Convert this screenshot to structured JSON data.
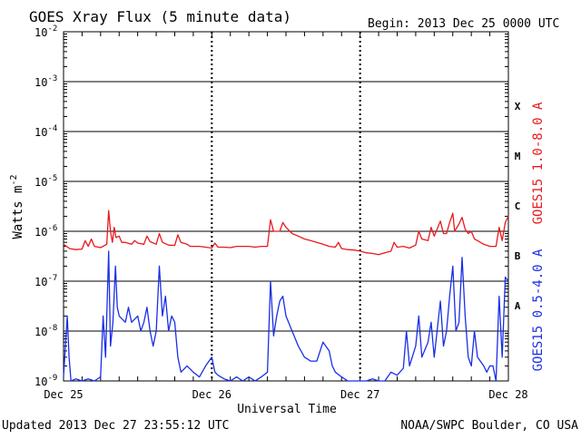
{
  "chart_data": {
    "type": "line",
    "title": "GOES Xray Flux (5 minute data)",
    "begin_label": "Begin:  2013 Dec 25 0000 UTC",
    "xlabel": "Universal Time",
    "ylabel": "Watts m",
    "ylabel_superscript": "-2",
    "y_scale": "log",
    "ylim": [
      1e-09,
      0.01
    ],
    "y_ticks": [
      {
        "value": 0.01,
        "label": "10",
        "exp": "-2"
      },
      {
        "value": 0.001,
        "label": "10",
        "exp": "-3"
      },
      {
        "value": 0.0001,
        "label": "10",
        "exp": "-4"
      },
      {
        "value": 1e-05,
        "label": "10",
        "exp": "-5"
      },
      {
        "value": 1e-06,
        "label": "10",
        "exp": "-6"
      },
      {
        "value": 1e-07,
        "label": "10",
        "exp": "-7"
      },
      {
        "value": 1e-08,
        "label": "10",
        "exp": "-8"
      },
      {
        "value": 1e-09,
        "label": "10",
        "exp": "-9"
      }
    ],
    "x_unit": "hours since 2013 Dec 25 0000 UTC",
    "xlim": [
      0,
      72
    ],
    "x_ticks": [
      {
        "value": 0,
        "label": "Dec 25"
      },
      {
        "value": 24,
        "label": "Dec 26"
      },
      {
        "value": 48,
        "label": "Dec 27"
      },
      {
        "value": 72,
        "label": "Dec 28"
      }
    ],
    "flare_classes": [
      {
        "label": "X",
        "value": 0.00032
      },
      {
        "label": "M",
        "value": 3.2e-05
      },
      {
        "label": "C",
        "value": 3.2e-06
      },
      {
        "label": "B",
        "value": 3.2e-07
      },
      {
        "label": "A",
        "value": 3.2e-08
      }
    ],
    "series": [
      {
        "name": "GOES15 1.0-8.0 A",
        "color": "#e8191e",
        "points": [
          [
            0,
            5.5e-07
          ],
          [
            1,
            4.5e-07
          ],
          [
            2,
            4.3e-07
          ],
          [
            3,
            4.4e-07
          ],
          [
            3.5,
            6.5e-07
          ],
          [
            4,
            5e-07
          ],
          [
            4.5,
            7e-07
          ],
          [
            5,
            5e-07
          ],
          [
            6,
            4.7e-07
          ],
          [
            7.0,
            5.5e-07
          ],
          [
            7.3,
            2.6e-06
          ],
          [
            7.6,
            1e-06
          ],
          [
            7.9,
            6e-07
          ],
          [
            8.2,
            1.2e-06
          ],
          [
            8.5,
            7.5e-07
          ],
          [
            9,
            8e-07
          ],
          [
            9.4,
            6e-07
          ],
          [
            10,
            6e-07
          ],
          [
            11,
            5.5e-07
          ],
          [
            11.5,
            6.5e-07
          ],
          [
            12,
            5.8e-07
          ],
          [
            13,
            5.5e-07
          ],
          [
            13.5,
            8e-07
          ],
          [
            14,
            6.2e-07
          ],
          [
            15,
            5.5e-07
          ],
          [
            15.5,
            9e-07
          ],
          [
            16,
            6e-07
          ],
          [
            17,
            5.3e-07
          ],
          [
            18,
            5.2e-07
          ],
          [
            18.5,
            8.5e-07
          ],
          [
            19,
            6e-07
          ],
          [
            20,
            5.5e-07
          ],
          [
            20.5,
            5e-07
          ],
          [
            22,
            5e-07
          ],
          [
            23,
            4.8e-07
          ],
          [
            24,
            4.6e-07
          ],
          [
            24.5,
            5.8e-07
          ],
          [
            25,
            4.8e-07
          ],
          [
            26,
            4.8e-07
          ],
          [
            27,
            4.7e-07
          ],
          [
            28,
            5e-07
          ],
          [
            29,
            5e-07
          ],
          [
            30,
            5e-07
          ],
          [
            31,
            4.8e-07
          ],
          [
            32,
            5e-07
          ],
          [
            33,
            5e-07
          ],
          [
            33.5,
            1.7e-06
          ],
          [
            34,
            1e-06
          ],
          [
            35,
            1e-06
          ],
          [
            35.5,
            1.5e-06
          ],
          [
            36,
            1.2e-06
          ],
          [
            37,
            9e-07
          ],
          [
            38,
            8e-07
          ],
          [
            39,
            7e-07
          ],
          [
            40,
            6.5e-07
          ],
          [
            41,
            6e-07
          ],
          [
            42,
            5.5e-07
          ],
          [
            43,
            5e-07
          ],
          [
            44,
            4.8e-07
          ],
          [
            44.5,
            6e-07
          ],
          [
            45,
            4.5e-07
          ],
          [
            46,
            4.3e-07
          ],
          [
            47,
            4.2e-07
          ],
          [
            48,
            4e-07
          ],
          [
            49,
            3.7e-07
          ],
          [
            50,
            3.6e-07
          ],
          [
            51,
            3.4e-07
          ],
          [
            52,
            3.7e-07
          ],
          [
            53,
            4e-07
          ],
          [
            53.5,
            6e-07
          ],
          [
            54,
            4.8e-07
          ],
          [
            55,
            5e-07
          ],
          [
            56,
            4.6e-07
          ],
          [
            57,
            5.3e-07
          ],
          [
            57.5,
            1e-06
          ],
          [
            58,
            7e-07
          ],
          [
            59,
            6.5e-07
          ],
          [
            59.5,
            1.2e-06
          ],
          [
            60,
            8e-07
          ],
          [
            61,
            1.6e-06
          ],
          [
            61.5,
            9e-07
          ],
          [
            62,
            9e-07
          ],
          [
            62.5,
            1.5e-06
          ],
          [
            63,
            2.3e-06
          ],
          [
            63.3,
            1e-06
          ],
          [
            64,
            1.4e-06
          ],
          [
            64.5,
            1.9e-06
          ],
          [
            65,
            1.1e-06
          ],
          [
            65.5,
            9e-07
          ],
          [
            66,
            1e-06
          ],
          [
            66.5,
            7e-07
          ],
          [
            67,
            6.5e-07
          ],
          [
            68,
            5.5e-07
          ],
          [
            69,
            5e-07
          ],
          [
            70,
            5e-07
          ],
          [
            70.5,
            1.2e-06
          ],
          [
            71,
            6.5e-07
          ],
          [
            71.5,
            1.5e-06
          ],
          [
            72,
            2e-06
          ]
        ]
      },
      {
        "name": "GOES15 0.5-4.0 A",
        "color": "#1a2fe6",
        "points": [
          [
            0,
            1.2e-09
          ],
          [
            0.3,
            5e-09
          ],
          [
            0.6,
            2e-08
          ],
          [
            0.9,
            3e-09
          ],
          [
            1.2,
            1e-09
          ],
          [
            2,
            1.1e-09
          ],
          [
            3,
            1e-09
          ],
          [
            4,
            1.1e-09
          ],
          [
            5,
            1e-09
          ],
          [
            6,
            1.2e-09
          ],
          [
            6.4,
            2e-08
          ],
          [
            6.8,
            3e-09
          ],
          [
            7.3,
            4e-07
          ],
          [
            7.6,
            5e-09
          ],
          [
            8.0,
            1.5e-08
          ],
          [
            8.4,
            2e-07
          ],
          [
            8.7,
            3e-08
          ],
          [
            9,
            2e-08
          ],
          [
            10,
            1.5e-08
          ],
          [
            10.5,
            3e-08
          ],
          [
            11,
            1.5e-08
          ],
          [
            12,
            2e-08
          ],
          [
            12.5,
            1e-08
          ],
          [
            13,
            1.5e-08
          ],
          [
            13.5,
            3e-08
          ],
          [
            14,
            1e-08
          ],
          [
            14.5,
            5e-09
          ],
          [
            15,
            1e-08
          ],
          [
            15.5,
            2e-07
          ],
          [
            16,
            2e-08
          ],
          [
            16.5,
            5e-08
          ],
          [
            17,
            1e-08
          ],
          [
            17.5,
            2e-08
          ],
          [
            18,
            1.5e-08
          ],
          [
            18.5,
            3e-09
          ],
          [
            19,
            1.5e-09
          ],
          [
            20,
            2e-09
          ],
          [
            21,
            1.5e-09
          ],
          [
            22,
            1.2e-09
          ],
          [
            23,
            2e-09
          ],
          [
            24,
            3e-09
          ],
          [
            24.5,
            1.5e-09
          ],
          [
            25,
            1.3e-09
          ],
          [
            26,
            1.1e-09
          ],
          [
            27,
            1e-09
          ],
          [
            28,
            1.2e-09
          ],
          [
            29,
            1e-09
          ],
          [
            30,
            1.2e-09
          ],
          [
            31,
            1e-09
          ],
          [
            32,
            1.2e-09
          ],
          [
            33,
            1.5e-09
          ],
          [
            33.5,
            1e-07
          ],
          [
            34,
            8e-09
          ],
          [
            34.5,
            2e-08
          ],
          [
            35,
            4e-08
          ],
          [
            35.5,
            5e-08
          ],
          [
            36,
            2e-08
          ],
          [
            37,
            1e-08
          ],
          [
            38,
            5e-09
          ],
          [
            39,
            3e-09
          ],
          [
            40,
            2.5e-09
          ],
          [
            41,
            2.5e-09
          ],
          [
            42,
            6e-09
          ],
          [
            43,
            4e-09
          ],
          [
            43.5,
            2e-09
          ],
          [
            44,
            1.5e-09
          ],
          [
            45,
            1.2e-09
          ],
          [
            46,
            1e-09
          ],
          [
            47,
            1e-09
          ],
          [
            48,
            1e-09
          ],
          [
            49,
            1e-09
          ],
          [
            50,
            1.1e-09
          ],
          [
            51,
            1e-09
          ],
          [
            52,
            1e-09
          ],
          [
            53,
            1.5e-09
          ],
          [
            54,
            1.3e-09
          ],
          [
            55,
            1.8e-09
          ],
          [
            55.5,
            1e-08
          ],
          [
            56,
            2e-09
          ],
          [
            57,
            5e-09
          ],
          [
            57.5,
            2e-08
          ],
          [
            58,
            3e-09
          ],
          [
            59,
            6e-09
          ],
          [
            59.5,
            1.5e-08
          ],
          [
            60,
            3e-09
          ],
          [
            61,
            4e-08
          ],
          [
            61.5,
            5e-09
          ],
          [
            62,
            1e-08
          ],
          [
            62.5,
            5e-08
          ],
          [
            63,
            2e-07
          ],
          [
            63.5,
            1e-08
          ],
          [
            64,
            1.5e-08
          ],
          [
            64.5,
            3e-07
          ],
          [
            65,
            2e-08
          ],
          [
            65.5,
            3e-09
          ],
          [
            66,
            2e-09
          ],
          [
            66.5,
            1e-08
          ],
          [
            67,
            3e-09
          ],
          [
            68,
            2e-09
          ],
          [
            68.5,
            1.5e-09
          ],
          [
            69,
            2e-09
          ],
          [
            69.5,
            2e-09
          ],
          [
            70,
            1e-09
          ],
          [
            70.5,
            5e-08
          ],
          [
            71,
            3e-09
          ],
          [
            71.5,
            1.2e-07
          ],
          [
            72,
            1e-07
          ]
        ]
      }
    ]
  },
  "footer": {
    "updated": "Updated 2013 Dec 27 23:55:12 UTC",
    "credit": "NOAA/SWPC Boulder, CO USA"
  }
}
